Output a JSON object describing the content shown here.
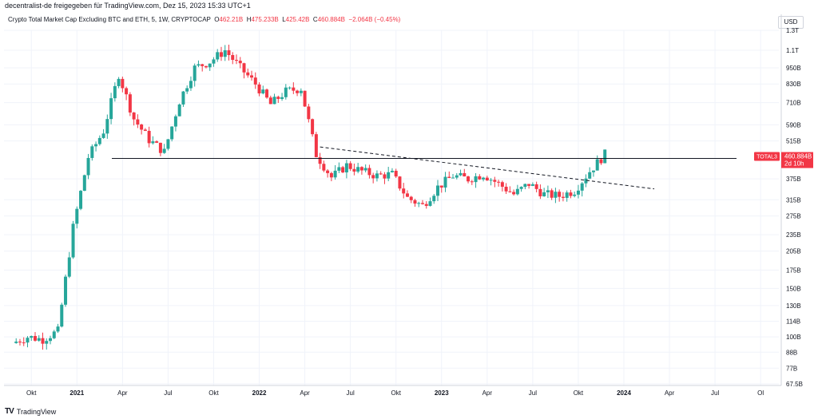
{
  "header": {
    "published_by": "decentralist-de freigegeben für TradingView.com, Dez 15, 2023 15:33 UTC+1"
  },
  "symbol_bar": {
    "name": "Crypto Total Market Cap Excluding BTC and ETH, 5, 1W, CRYPTOCAP",
    "open_label": "O",
    "open": "462.21B",
    "high_label": "H",
    "high": "475.233B",
    "low_label": "L",
    "low": "425.42B",
    "close_label": "C",
    "close": "460.884B",
    "change": "−2.064B (−0.45%)"
  },
  "currency_button": "USD",
  "price_badge": {
    "symbol": "TOTAL3",
    "price": "460.884B",
    "countdown": "2d 10h"
  },
  "footer": {
    "logo_text": "TV",
    "brand": "TradingView"
  },
  "colors": {
    "up": "#26a69a",
    "down": "#f23645",
    "grid": "#f0f3fa",
    "axis_text": "#131722",
    "support_line": "#131722",
    "trend_line": "#131722"
  },
  "chart_data": {
    "type": "candlestick",
    "interval": "1W",
    "y_scale": "log",
    "y_ticks": [
      "1.3T",
      "1.1T",
      "950B",
      "830B",
      "710B",
      "590B",
      "515B",
      "460.884B",
      "375B",
      "315B",
      "275B",
      "235B",
      "205B",
      "175B",
      "150B",
      "130B",
      "114B",
      "100B",
      "88B",
      "77B",
      "67.5B"
    ],
    "x_ticks": [
      "Okt",
      "2021",
      "Apr",
      "Jul",
      "Okt",
      "2022",
      "Apr",
      "Jul",
      "Okt",
      "2023",
      "Apr",
      "Jul",
      "Okt",
      "2024",
      "Apr",
      "Jul",
      "Ol"
    ],
    "series": [
      {
        "date": "2020-09",
        "close": 95
      },
      {
        "date": "2020-10",
        "close": 100
      },
      {
        "date": "2020-11",
        "close": 98
      },
      {
        "date": "2020-12",
        "close": 105
      },
      {
        "date": "2021-01",
        "close": 250
      },
      {
        "date": "2021-02",
        "close": 450
      },
      {
        "date": "2021-03",
        "close": 560
      },
      {
        "date": "2021-04",
        "close": 900
      },
      {
        "date": "2021-05",
        "close": 620
      },
      {
        "date": "2021-06",
        "close": 520
      },
      {
        "date": "2021-07",
        "close": 470
      },
      {
        "date": "2021-08",
        "close": 720
      },
      {
        "date": "2021-09",
        "close": 950
      },
      {
        "date": "2021-10",
        "close": 1000
      },
      {
        "date": "2021-11",
        "close": 1100
      },
      {
        "date": "2021-12",
        "close": 950
      },
      {
        "date": "2022-01",
        "close": 830
      },
      {
        "date": "2022-02",
        "close": 700
      },
      {
        "date": "2022-03",
        "close": 780
      },
      {
        "date": "2022-04",
        "close": 800
      },
      {
        "date": "2022-05",
        "close": 460
      },
      {
        "date": "2022-06",
        "close": 380
      },
      {
        "date": "2022-07",
        "close": 420
      },
      {
        "date": "2022-08",
        "close": 400
      },
      {
        "date": "2022-09",
        "close": 385
      },
      {
        "date": "2022-10",
        "close": 390
      },
      {
        "date": "2022-11",
        "close": 320
      },
      {
        "date": "2022-12",
        "close": 300
      },
      {
        "date": "2023-01",
        "close": 350
      },
      {
        "date": "2023-02",
        "close": 385
      },
      {
        "date": "2023-03",
        "close": 375
      },
      {
        "date": "2023-04",
        "close": 390
      },
      {
        "date": "2023-05",
        "close": 360
      },
      {
        "date": "2023-06",
        "close": 330
      },
      {
        "date": "2023-07",
        "close": 360
      },
      {
        "date": "2023-08",
        "close": 330
      },
      {
        "date": "2023-09",
        "close": 325
      },
      {
        "date": "2023-10",
        "close": 340
      },
      {
        "date": "2023-11",
        "close": 400
      },
      {
        "date": "2023-12",
        "close": 461
      }
    ],
    "horizontal_line": 445,
    "trend_line": [
      {
        "date": "2022-05",
        "value": 490
      },
      {
        "date": "2024-03",
        "value": 345
      }
    ]
  }
}
